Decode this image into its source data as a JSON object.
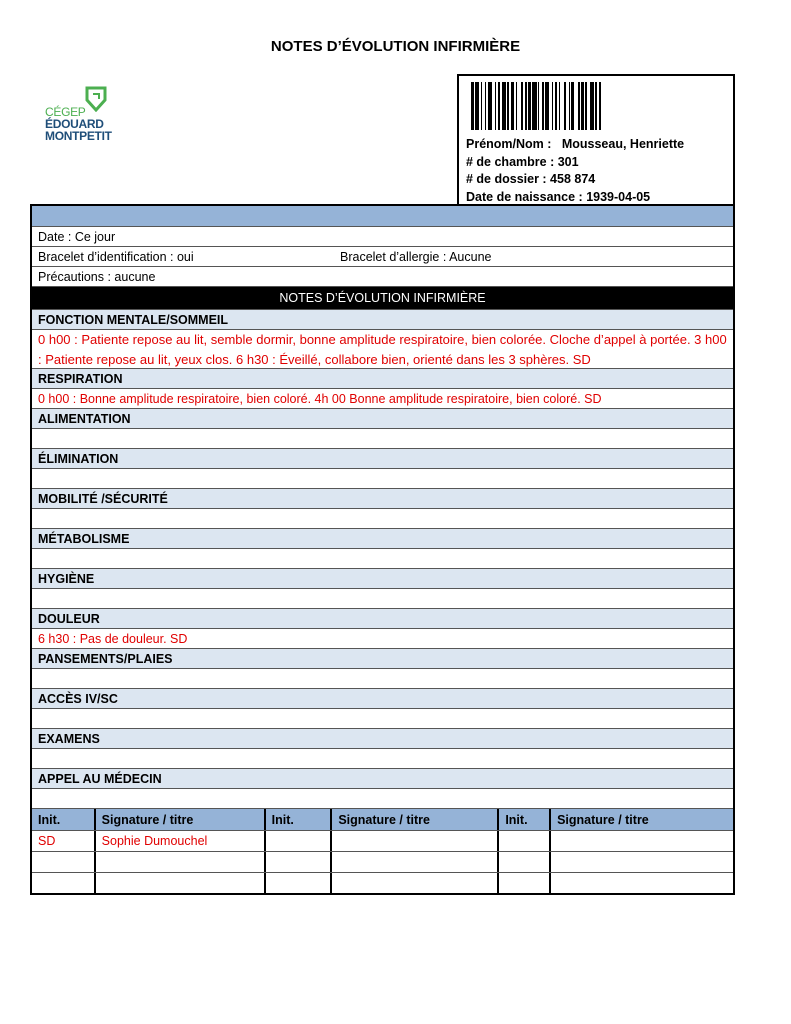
{
  "title": "NOTES D’ÉVOLUTION INFIRMIÈRE",
  "logo": {
    "line1": "CÉGEP",
    "line2": "ÉDOUARD",
    "line3": "MONTPETIT",
    "brand_color": "#4caf50"
  },
  "patient": {
    "name": "Prénom/Nom :   Mousseau, Henriette",
    "room": "# de chambre : 301",
    "file": "# de dossier : 458 874",
    "dob": "Date de naissance : 1939-04-05"
  },
  "info": {
    "date": "Date : Ce jour",
    "id_bracelet": "Bracelet d’identification : oui",
    "allergy_bracelet": "Bracelet d’allergie : Aucune",
    "precautions": "Précautions : aucune"
  },
  "notes_header": "NOTES D’ÉVOLUTION INFIRMIÈRE",
  "sections": [
    {
      "label": "FONCTION MENTALE/SOMMEIL",
      "note": "0 h00 : Patiente repose au lit, semble dormir, bonne amplitude respiratoire, bien colorée. Cloche d’appel à portée. 3 h00 : Patiente repose au lit, yeux clos. 6 h30 : Éveillé, collabore bien, orienté dans les 3 sphères. SD"
    },
    {
      "label": "RESPIRATION",
      "note": "0 h00 : Bonne amplitude respiratoire, bien coloré. 4h 00 Bonne amplitude respiratoire, bien coloré. SD"
    },
    {
      "label": "ALIMENTATION",
      "note": ""
    },
    {
      "label": "ÉLIMINATION",
      "note": ""
    },
    {
      "label": "MOBILITÉ /SÉCURITÉ",
      "note": ""
    },
    {
      "label": "MÉTABOLISME",
      "note": ""
    },
    {
      "label": "HYGIÈNE",
      "note": ""
    },
    {
      "label": "DOULEUR",
      "note": "6 h30 : Pas de douleur. SD"
    },
    {
      "label": "PANSEMENTS/PLAIES",
      "note": ""
    },
    {
      "label": "ACCÈS IV/SC",
      "note": ""
    },
    {
      "label": "EXAMENS",
      "note": ""
    },
    {
      "label": "APPEL AU MÉDECIN",
      "note": ""
    }
  ],
  "signatures": {
    "headers": [
      "Init.",
      "Signature / titre",
      "Init.",
      "Signature / titre",
      "Init.",
      "Signature / titre"
    ],
    "rows": [
      [
        "SD",
        "Sophie Dumouchel",
        "",
        "",
        "",
        ""
      ],
      [
        "",
        "",
        "",
        "",
        "",
        ""
      ],
      [
        "",
        "",
        "",
        "",
        "",
        ""
      ]
    ]
  },
  "colors": {
    "band": "#95b3d7",
    "section_header": "#dce6f1",
    "note_text": "#e00000"
  }
}
